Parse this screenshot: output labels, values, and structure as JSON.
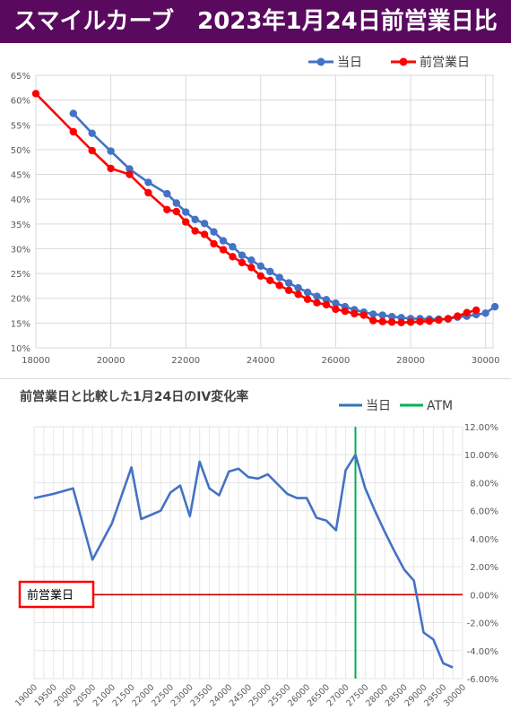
{
  "header": {
    "title": "スマイルカーブ　2023年1月24日前営業日比"
  },
  "colors": {
    "header_bg": "#5a0a5e",
    "today": "#4472c4",
    "prev": "#ff0000",
    "atm": "#00b050",
    "zero_line": "#c00000"
  },
  "chart_data": [
    {
      "type": "line",
      "title": "",
      "xlabel": "",
      "ylabel": "",
      "xlim": [
        18000,
        30200
      ],
      "ylim": [
        10,
        65
      ],
      "x_ticks": [
        18000,
        20000,
        22000,
        24000,
        26000,
        28000,
        30000
      ],
      "y_ticks": [
        10,
        15,
        20,
        25,
        30,
        35,
        40,
        45,
        50,
        55,
        60,
        65
      ],
      "y_unit": "%",
      "grid": true,
      "legend_position": "top-right",
      "series": [
        {
          "name": "当日",
          "color": "#4472c4",
          "points": [
            [
              19000,
              57.3
            ],
            [
              19500,
              53.3
            ],
            [
              20000,
              49.7
            ],
            [
              20500,
              46.1
            ],
            [
              21000,
              43.4
            ],
            [
              21500,
              41.1
            ],
            [
              21750,
              39.2
            ],
            [
              22000,
              37.4
            ],
            [
              22250,
              35.9
            ],
            [
              22500,
              35.1
            ],
            [
              22750,
              33.4
            ],
            [
              23000,
              31.6
            ],
            [
              23250,
              30.4
            ],
            [
              23500,
              28.7
            ],
            [
              23750,
              27.7
            ],
            [
              24000,
              26.5
            ],
            [
              24250,
              25.4
            ],
            [
              24500,
              24.2
            ],
            [
              24750,
              23.1
            ],
            [
              25000,
              22.1
            ],
            [
              25250,
              21.2
            ],
            [
              25500,
              20.4
            ],
            [
              25750,
              19.7
            ],
            [
              26000,
              19.0
            ],
            [
              26250,
              18.3
            ],
            [
              26500,
              17.7
            ],
            [
              26750,
              17.2
            ],
            [
              27000,
              16.8
            ],
            [
              27250,
              16.6
            ],
            [
              27500,
              16.3
            ],
            [
              27750,
              16.1
            ],
            [
              28000,
              15.9
            ],
            [
              28250,
              15.9
            ],
            [
              28500,
              15.8
            ],
            [
              28750,
              15.8
            ],
            [
              29000,
              15.8
            ],
            [
              29250,
              16.2
            ],
            [
              29500,
              16.4
            ],
            [
              29750,
              16.7
            ],
            [
              30000,
              17.0
            ],
            [
              30250,
              18.3
            ]
          ]
        },
        {
          "name": "前営業日",
          "color": "#ff0000",
          "points": [
            [
              18000,
              61.3
            ],
            [
              19000,
              53.6
            ],
            [
              19500,
              49.8
            ],
            [
              20000,
              46.2
            ],
            [
              20500,
              45.0
            ],
            [
              21000,
              41.3
            ],
            [
              21500,
              37.9
            ],
            [
              21750,
              37.5
            ],
            [
              22000,
              35.4
            ],
            [
              22250,
              33.6
            ],
            [
              22500,
              32.9
            ],
            [
              22750,
              31.0
            ],
            [
              23000,
              29.8
            ],
            [
              23250,
              28.4
            ],
            [
              23500,
              27.2
            ],
            [
              23750,
              26.2
            ],
            [
              24000,
              24.5
            ],
            [
              24250,
              23.6
            ],
            [
              24500,
              22.6
            ],
            [
              24750,
              21.6
            ],
            [
              25000,
              20.8
            ],
            [
              25250,
              19.8
            ],
            [
              25500,
              19.1
            ],
            [
              25750,
              18.7
            ],
            [
              26000,
              17.8
            ],
            [
              26250,
              17.4
            ],
            [
              26500,
              16.9
            ],
            [
              26750,
              16.6
            ],
            [
              27000,
              15.5
            ],
            [
              27250,
              15.3
            ],
            [
              27500,
              15.2
            ],
            [
              27750,
              15.1
            ],
            [
              28000,
              15.2
            ],
            [
              28250,
              15.3
            ],
            [
              28500,
              15.4
            ],
            [
              28750,
              15.6
            ],
            [
              29000,
              15.9
            ],
            [
              29250,
              16.4
            ],
            [
              29500,
              17.1
            ],
            [
              29750,
              17.6
            ]
          ]
        }
      ]
    },
    {
      "type": "line",
      "title": "前営業日と比較した1月24日のIV変化率",
      "xlabel": "",
      "ylabel": "",
      "xlim": [
        19000,
        30000
      ],
      "ylim": [
        -6,
        12
      ],
      "x_ticks": [
        19000,
        19500,
        20000,
        20500,
        21000,
        21500,
        22000,
        22500,
        23000,
        23500,
        24000,
        24500,
        25000,
        25500,
        26000,
        26500,
        27000,
        27500,
        28000,
        28500,
        29000,
        29500,
        30000
      ],
      "y_ticks": [
        -6,
        -4,
        -2,
        0,
        2,
        4,
        6,
        8,
        10,
        12
      ],
      "y_tick_labels": [
        "-6.00%",
        "-4.00%",
        "-2.00%",
        "0.00%",
        "2.00%",
        "4.00%",
        "6.00%",
        "8.00%",
        "10.00%",
        "12.00%"
      ],
      "y_axis_position": "right",
      "grid": true,
      "legend_position": "top",
      "atm_label": "ATM",
      "atm_x": 27250,
      "zero_line_label": "前営業日",
      "series": [
        {
          "name": "当日",
          "color": "#4472c4",
          "points": [
            [
              19000,
              6.9
            ],
            [
              19500,
              7.2
            ],
            [
              20000,
              7.6
            ],
            [
              20500,
              2.5
            ],
            [
              21000,
              5.1
            ],
            [
              21500,
              9.1
            ],
            [
              21750,
              5.4
            ],
            [
              22250,
              6.0
            ],
            [
              22500,
              7.3
            ],
            [
              22750,
              7.8
            ],
            [
              23000,
              5.6
            ],
            [
              23250,
              9.5
            ],
            [
              23500,
              7.6
            ],
            [
              23750,
              7.1
            ],
            [
              24000,
              8.8
            ],
            [
              24250,
              9.0
            ],
            [
              24500,
              8.4
            ],
            [
              24750,
              8.3
            ],
            [
              25000,
              8.6
            ],
            [
              25250,
              7.9
            ],
            [
              25500,
              7.2
            ],
            [
              25750,
              6.9
            ],
            [
              26000,
              6.9
            ],
            [
              26250,
              5.5
            ],
            [
              26500,
              5.3
            ],
            [
              26750,
              4.6
            ],
            [
              27000,
              8.9
            ],
            [
              27250,
              10.0
            ],
            [
              27500,
              7.6
            ],
            [
              27750,
              6.0
            ],
            [
              28000,
              4.5
            ],
            [
              28250,
              3.1
            ],
            [
              28500,
              1.8
            ],
            [
              28750,
              1.0
            ],
            [
              29000,
              -2.7
            ],
            [
              29250,
              -3.2
            ],
            [
              29500,
              -4.9
            ],
            [
              29750,
              -5.2
            ]
          ]
        }
      ]
    }
  ]
}
